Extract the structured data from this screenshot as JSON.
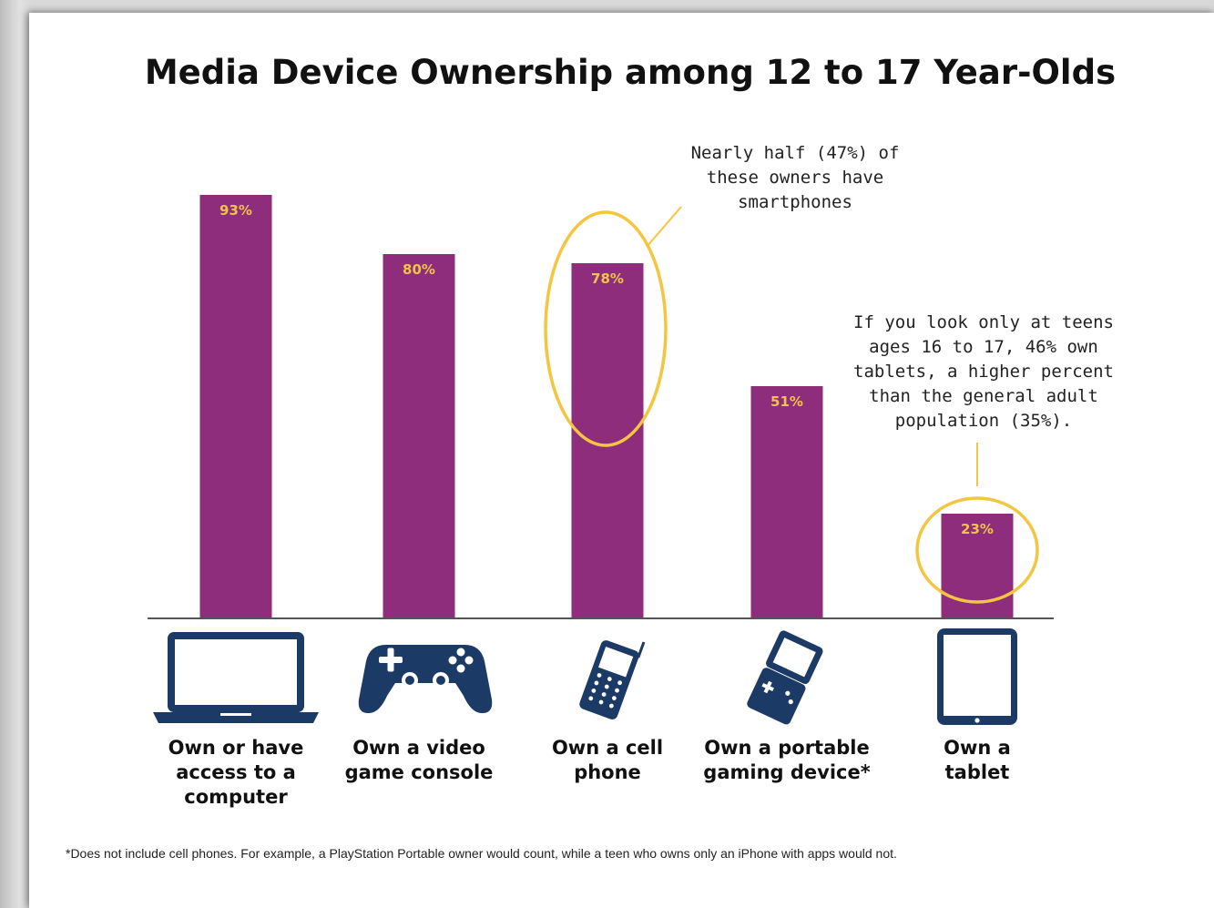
{
  "colors": {
    "bar": "#8e2d7b",
    "bar_label": "#f2c24a",
    "highlight_ring": "#f4c540",
    "icon": "#1c3a66",
    "axis": "#555555"
  },
  "icons": [
    "laptop-icon",
    "game-controller-icon",
    "cell-phone-icon",
    "portable-gaming-device-icon",
    "tablet-icon"
  ],
  "chart_data": {
    "type": "bar",
    "title": "Media Device Ownership among 12 to 17 Year-Olds",
    "categories": [
      "Own or have access to a computer",
      "Own a video game console",
      "Own a cell phone",
      "Own a portable gaming device*",
      "Own a tablet"
    ],
    "category_lines": [
      [
        "Own or have",
        "access to a",
        "computer"
      ],
      [
        "Own a video",
        "game console"
      ],
      [
        "Own a cell",
        "phone"
      ],
      [
        "Own a portable",
        "gaming device*"
      ],
      [
        "Own a",
        "tablet"
      ]
    ],
    "values": [
      93,
      80,
      78,
      51,
      23
    ],
    "value_labels": [
      "93%",
      "80%",
      "78%",
      "51%",
      "23%"
    ],
    "ylim": [
      0,
      100
    ],
    "grid": false,
    "highlighted_categories": [
      "Own a cell phone",
      "Own a tablet"
    ],
    "annotations": [
      {
        "target": "Own a cell phone",
        "lines": [
          "Nearly half (47%) of",
          "these owners have",
          "smartphones"
        ]
      },
      {
        "target": "Own a tablet",
        "lines": [
          "If you look only at teens",
          "ages 16 to 17, 46% own",
          "tablets, a higher percent",
          "than the general adult",
          "population (35%)."
        ]
      }
    ],
    "footnote": "*Does not include cell phones. For example, a PlayStation Portable owner would count, while a teen who owns only an iPhone with apps would not."
  }
}
